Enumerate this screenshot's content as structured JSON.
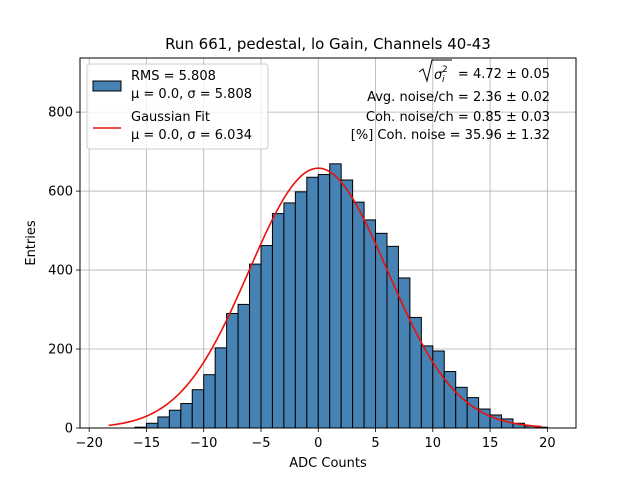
{
  "chart_data": {
    "type": "bar",
    "title": "Run 661, pedestal, lo Gain, Channels 40-43",
    "xlabel": "ADC Counts",
    "ylabel": "Entries",
    "xlim": [
      -20.8,
      22.5
    ],
    "ylim": [
      0,
      937
    ],
    "xticks": [
      -20,
      -15,
      -10,
      -5,
      0,
      5,
      10,
      15,
      20
    ],
    "yticks": [
      0,
      200,
      400,
      600,
      800
    ],
    "grid": true,
    "bin_width": 1,
    "bin_start": -16,
    "values": [
      2,
      12,
      28,
      45,
      62,
      97,
      135,
      203,
      290,
      313,
      415,
      462,
      543,
      570,
      598,
      635,
      642,
      669,
      628,
      572,
      527,
      493,
      460,
      380,
      280,
      208,
      195,
      143,
      103,
      77,
      48,
      33,
      23,
      12,
      5,
      2
    ],
    "bar_color": "#4682b4",
    "fit_color": "#e8120c",
    "fit": {
      "mu": 0.0,
      "sigma": 6.034,
      "amplitude": 658,
      "x_range": [
        -18.3,
        19.5
      ]
    },
    "legend": {
      "placement": "upper-left",
      "entries": [
        {
          "kind": "patch",
          "line1": "RMS = 5.808",
          "line2": "μ = 0.0, σ = 5.808"
        },
        {
          "kind": "line",
          "line1": "Gaussian Fit",
          "line2": "μ = 0.0, σ = 6.034"
        }
      ]
    },
    "annotations": {
      "sqrt_value": " = 4.72 ± 0.05",
      "avg_noise": "Avg. noise/ch = 2.36 ± 0.02",
      "coh_noise": "Coh. noise/ch = 0.85 ± 0.03",
      "pct_coh_noise": "[%] Coh. noise = 35.96 ± 1.32"
    }
  }
}
